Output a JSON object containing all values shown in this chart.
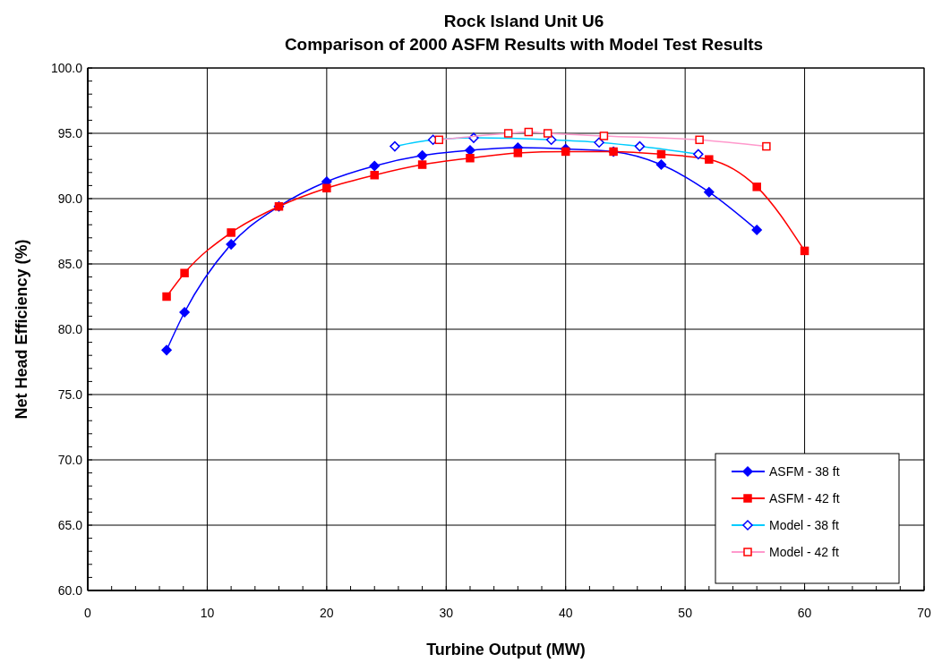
{
  "chart_data": {
    "type": "line",
    "title": "Rock Island Unit U6",
    "subtitle": "Comparison of 2000 ASFM Results with Model Test Results",
    "xlabel": "Turbine Output (MW)",
    "ylabel": "Net Head Efficiency (%)",
    "xlim": [
      0,
      70
    ],
    "xticks": [
      0,
      10,
      20,
      30,
      40,
      50,
      60,
      70
    ],
    "ylim": [
      60,
      100
    ],
    "yticks": [
      {
        "value": 60,
        "label": "60.0"
      },
      {
        "value": 65,
        "label": "65.0"
      },
      {
        "value": 70,
        "label": "70.0"
      },
      {
        "value": 75,
        "label": "75.0"
      },
      {
        "value": 80,
        "label": "80.0"
      },
      {
        "value": 85,
        "label": "85.0"
      },
      {
        "value": 90,
        "label": "90.0"
      },
      {
        "value": 95,
        "label": "95.0"
      },
      {
        "value": 100,
        "label": "100.0"
      }
    ],
    "grid": true,
    "legend": "bottom right",
    "series": [
      {
        "name": "ASFM - 38 ft",
        "color": "#0000ff",
        "marker": "diamond",
        "x": [
          6.6,
          8.1,
          12,
          16,
          20,
          24,
          28,
          32,
          36,
          40,
          44,
          48,
          52,
          56
        ],
        "values": [
          78.4,
          81.3,
          86.5,
          89.4,
          91.3,
          92.5,
          93.3,
          93.7,
          93.9,
          93.8,
          93.6,
          92.6,
          90.5,
          87.6
        ]
      },
      {
        "name": "ASFM - 42 ft",
        "color": "#ff0000",
        "marker": "square",
        "x": [
          6.6,
          8.1,
          12,
          16,
          20,
          24,
          28,
          32,
          36,
          40,
          44,
          48,
          52,
          56,
          60
        ],
        "values": [
          82.5,
          84.3,
          87.4,
          89.4,
          90.8,
          91.8,
          92.6,
          93.1,
          93.5,
          93.6,
          93.6,
          93.4,
          93.0,
          90.9,
          86.0
        ]
      },
      {
        "name": "Model - 38 ft",
        "color": "#00ccff",
        "marker": "diamond",
        "x": [
          25.7,
          28.9,
          32.3,
          38.8,
          42.8,
          46.2,
          51.1
        ],
        "values": [
          94.0,
          94.5,
          94.65,
          94.5,
          94.3,
          94.0,
          93.4
        ]
      },
      {
        "name": "Model - 42 ft",
        "color": "#ff99cc",
        "marker": "square",
        "x": [
          29.4,
          35.2,
          36.9,
          38.5,
          43.2,
          51.2,
          56.8
        ],
        "values": [
          94.5,
          95.0,
          95.1,
          95.0,
          94.8,
          94.5,
          94.0
        ]
      }
    ]
  }
}
